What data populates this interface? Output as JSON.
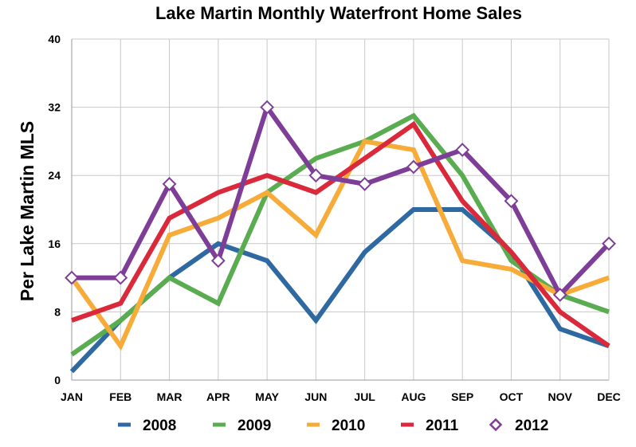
{
  "chart_data": {
    "type": "line",
    "title": "Lake Martin Monthly Waterfront Home Sales",
    "xlabel": "",
    "ylabel": "Per Lake Martin MLS",
    "ylim": [
      0,
      40
    ],
    "yticks": [
      0,
      8,
      16,
      24,
      32,
      40
    ],
    "grid": true,
    "legend": "bottom",
    "categories": [
      "JAN",
      "FEB",
      "MAR",
      "APR",
      "MAY",
      "JUN",
      "JUL",
      "AUG",
      "SEP",
      "OCT",
      "NOV",
      "DEC"
    ],
    "series": [
      {
        "name": "2008",
        "color": "#2e6aa1",
        "marker": "none",
        "values": [
          1,
          7,
          12,
          16,
          14,
          7,
          15,
          20,
          20,
          15,
          6,
          4
        ]
      },
      {
        "name": "2009",
        "color": "#5aac50",
        "marker": "none",
        "values": [
          3,
          7,
          12,
          9,
          22,
          26,
          28,
          31,
          24,
          14,
          10,
          8
        ]
      },
      {
        "name": "2010",
        "color": "#f7ac3a",
        "marker": "none",
        "values": [
          12,
          4,
          17,
          19,
          22,
          17,
          28,
          27,
          14,
          13,
          10,
          12
        ]
      },
      {
        "name": "2011",
        "color": "#d9293a",
        "marker": "none",
        "values": [
          7,
          9,
          19,
          22,
          24,
          22,
          26,
          30,
          21,
          15,
          8,
          4
        ]
      },
      {
        "name": "2012",
        "color": "#7e3e98",
        "marker": "diamond",
        "values": [
          12,
          12,
          23,
          14,
          32,
          24,
          23,
          25,
          27,
          21,
          10,
          16
        ]
      }
    ]
  }
}
